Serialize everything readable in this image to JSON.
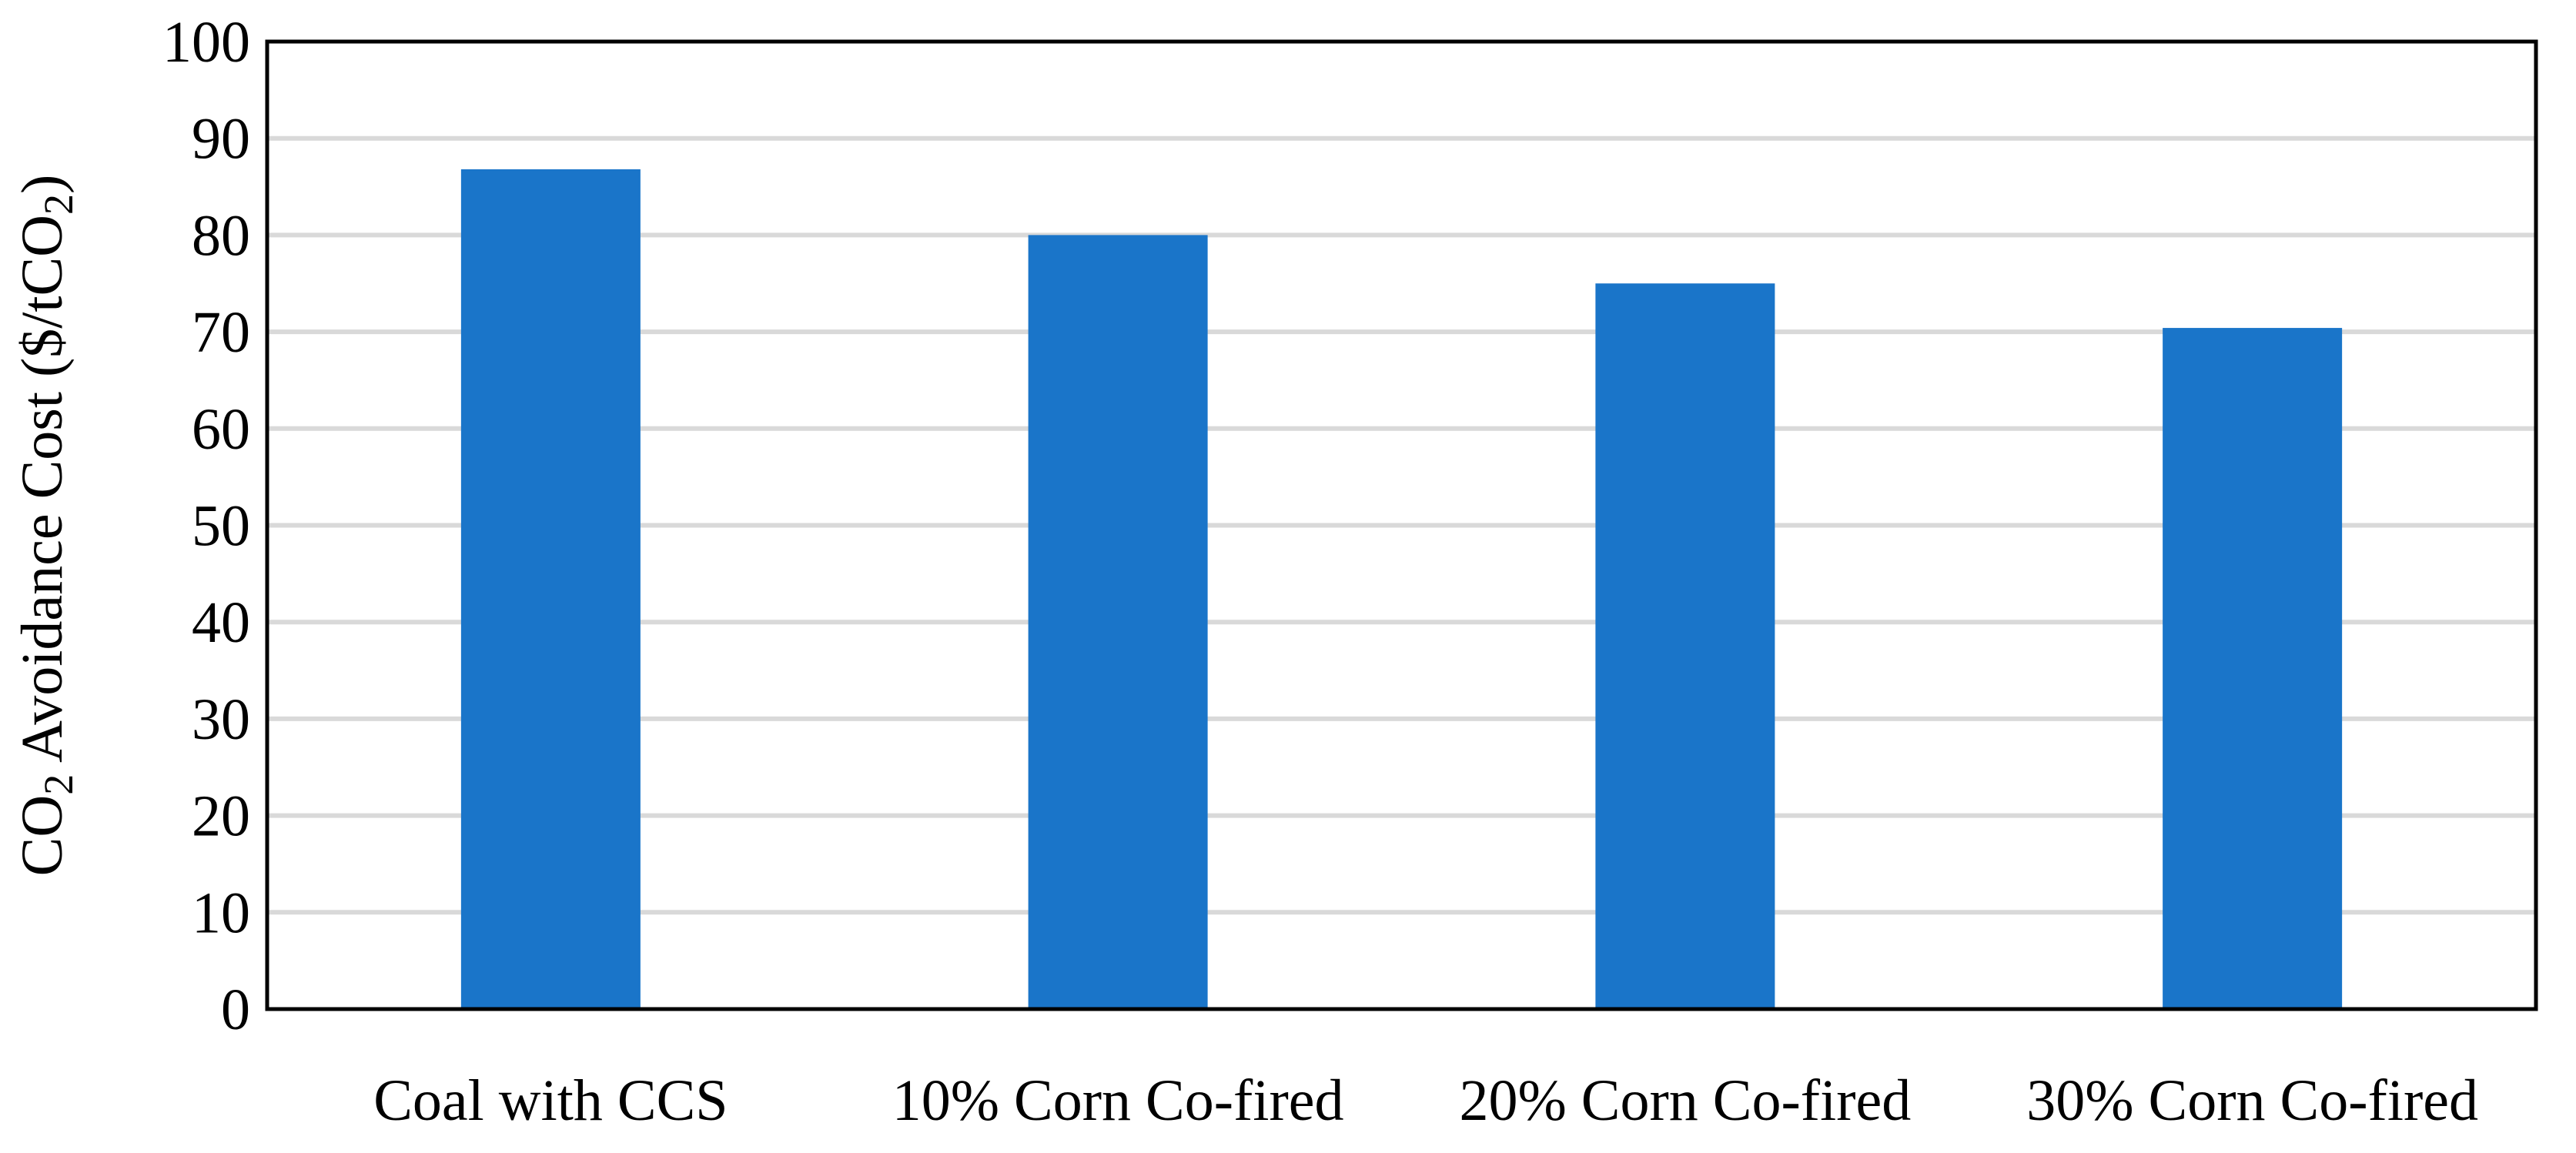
{
  "chart_data": {
    "type": "bar",
    "title": "",
    "xlabel": "",
    "ylabel": {
      "part1": "CO",
      "sub1": "2",
      "part2": " Avoidance Cost ($/tCO",
      "sub2": "2",
      "part3": ")"
    },
    "categories": [
      "Coal with CCS",
      "10% Corn Co-fired",
      "20% Corn Co-fired",
      "30% Corn Co-fired"
    ],
    "values": [
      86.8,
      80.0,
      75.0,
      70.4
    ],
    "ylim": [
      0,
      100
    ],
    "yticks": [
      "0",
      "10",
      "20",
      "30",
      "40",
      "50",
      "60",
      "70",
      "80",
      "90",
      "100"
    ],
    "grid": true,
    "legend": "none",
    "bar_color": "#1a75c9",
    "grid_color": "#d9d9d9"
  }
}
